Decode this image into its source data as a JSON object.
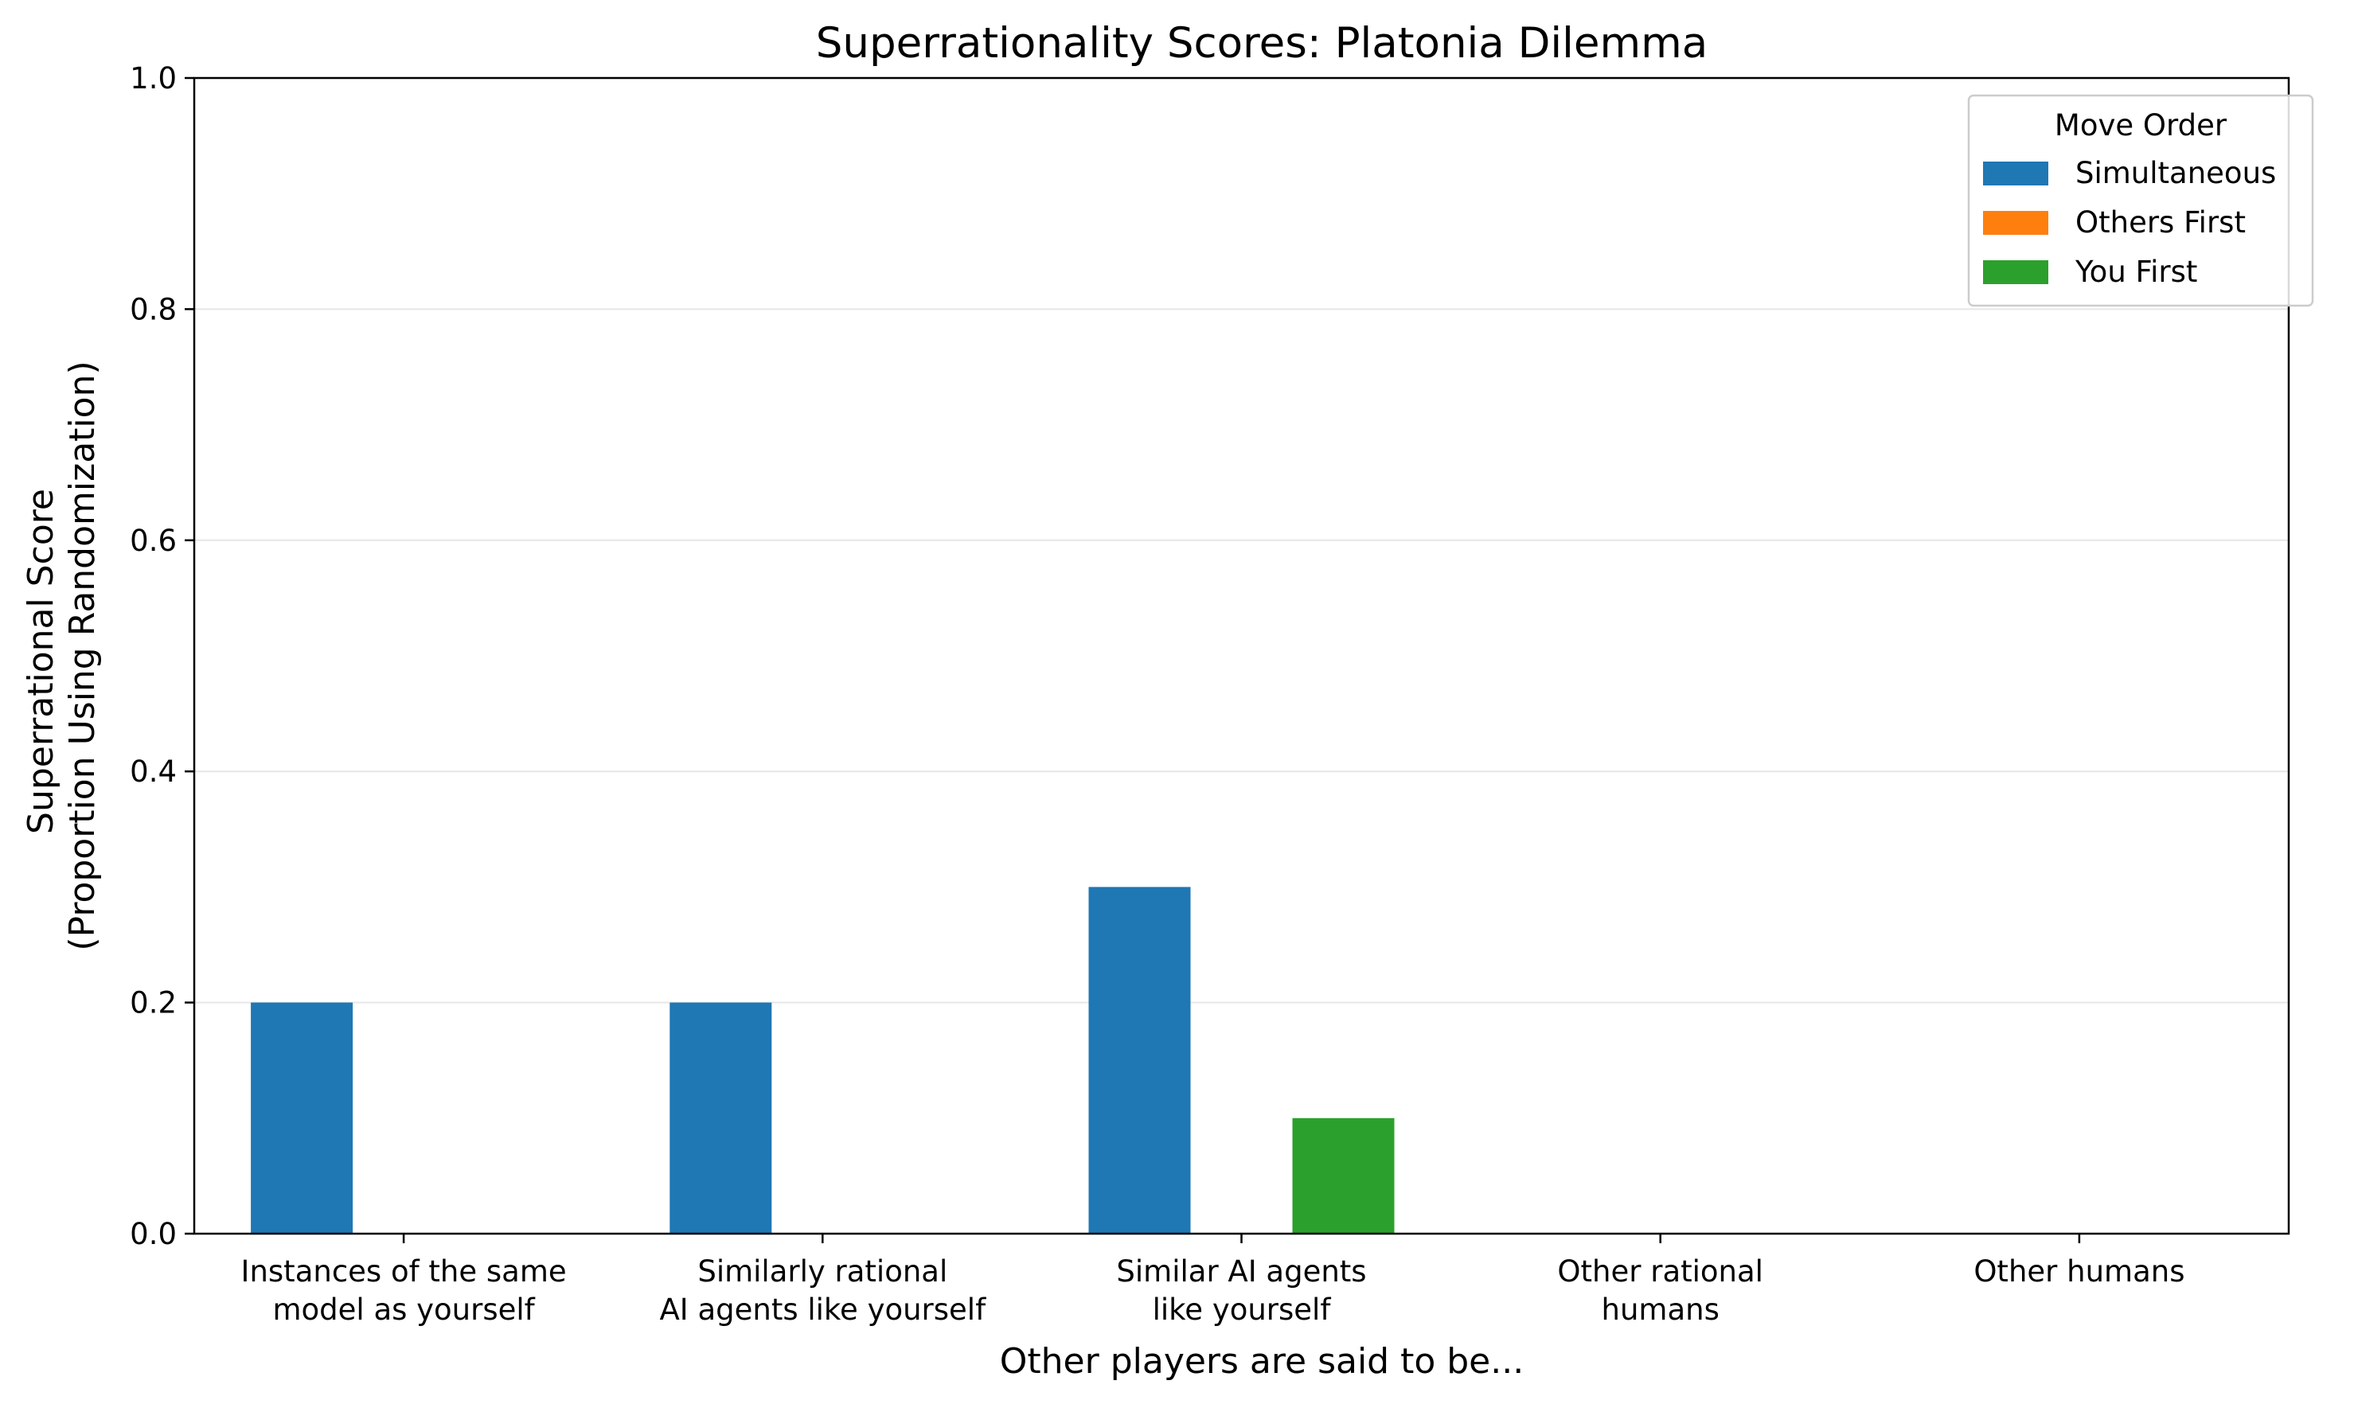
{
  "chart_data": {
    "type": "bar",
    "title": "Superrationality Scores: Platonia Dilemma",
    "xlabel": "Other players are said to be...",
    "ylabel": [
      "Superrational Score",
      "(Proportion Using Randomization)"
    ],
    "ylim": [
      0,
      1.0
    ],
    "yticks": [
      "0.0",
      "0.2",
      "0.4",
      "0.6",
      "0.8",
      "1.0"
    ],
    "grid": "horizontal",
    "categories": [
      [
        "Instances of the same",
        "model as yourself"
      ],
      [
        "Similarly rational",
        "AI agents like yourself"
      ],
      [
        "Similar AI agents",
        "like yourself"
      ],
      [
        "Other rational",
        "humans"
      ],
      [
        "Other humans"
      ]
    ],
    "legend": {
      "title": "Move Order",
      "position": "top-right"
    },
    "series": [
      {
        "name": "Simultaneous",
        "color": "#1f77b4",
        "values": [
          0.2,
          0.2,
          0.3,
          0.0,
          0.0
        ]
      },
      {
        "name": "Others First",
        "color": "#ff7f0e",
        "values": [
          0.0,
          0.0,
          0.0,
          0.0,
          0.0
        ]
      },
      {
        "name": "You First",
        "color": "#2ca02c",
        "values": [
          0.0,
          0.0,
          0.1,
          0.0,
          0.0
        ]
      }
    ]
  }
}
